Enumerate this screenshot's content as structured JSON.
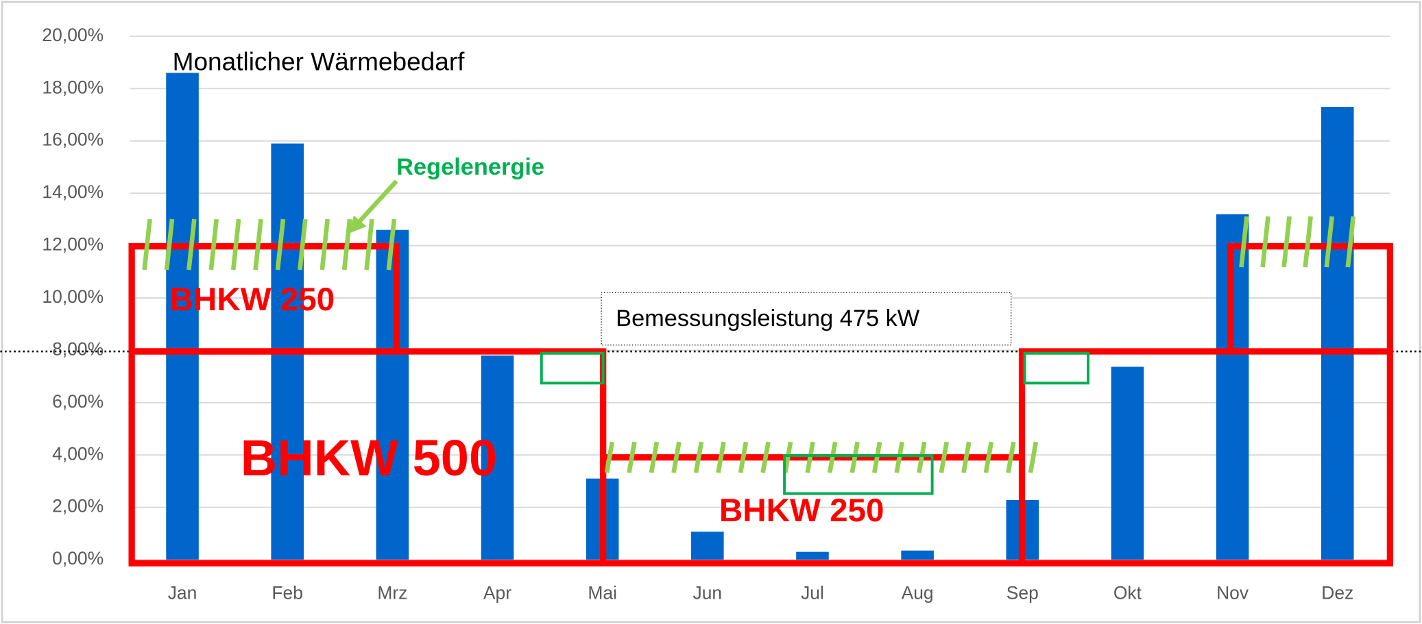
{
  "chart_data": {
    "type": "bar",
    "title": "Monatlicher Wärmebedarf",
    "categories": [
      "Jan",
      "Feb",
      "Mrz",
      "Apr",
      "Mai",
      "Jun",
      "Jul",
      "Aug",
      "Sep",
      "Okt",
      "Nov",
      "Dez"
    ],
    "values": [
      18.6,
      15.9,
      12.6,
      7.8,
      3.1,
      1.07,
      0.3,
      0.35,
      2.28,
      7.37,
      13.2,
      17.3
    ],
    "color": "#0066cc",
    "ylim": [
      0,
      20
    ],
    "yticks": [
      {
        "value": 0,
        "label": "0,00%"
      },
      {
        "value": 2,
        "label": "2,00%"
      },
      {
        "value": 4,
        "label": "4,00%"
      },
      {
        "value": 6,
        "label": "6,00%"
      },
      {
        "value": 8,
        "label": "8,00%"
      },
      {
        "value": 10,
        "label": "10,00%"
      },
      {
        "value": 12,
        "label": "12,00%"
      },
      {
        "value": 14,
        "label": "14,00%"
      },
      {
        "value": 16,
        "label": "16,00%"
      },
      {
        "value": 18,
        "label": "18,00%"
      },
      {
        "value": 20,
        "label": "20,00%"
      }
    ],
    "grid": true,
    "annotations": [
      "Regelenergie",
      "BHKW 250",
      "BHKW 500",
      "BHKW 250",
      "Bemessungsleistung 475 kW"
    ]
  }
}
